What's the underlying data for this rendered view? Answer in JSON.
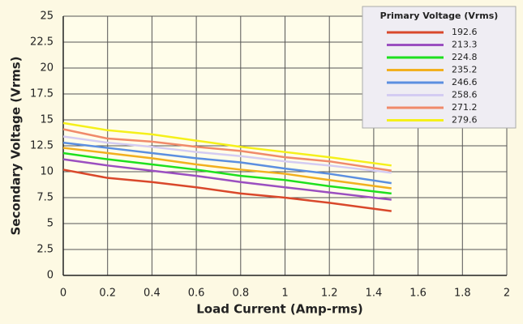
{
  "chart_data": {
    "type": "line",
    "xlabel": "Load Current (Amp-rms)",
    "ylabel": "Secondary Voltage (Vrms)",
    "legend_title": "Primary Voltage (Vrms)",
    "legend": "upper right",
    "grid": true,
    "x": [
      0,
      0.2,
      0.4,
      0.6,
      0.8,
      1.0,
      1.2,
      1.48
    ],
    "xlim": [
      0,
      2
    ],
    "xticks": [
      0,
      0.2,
      0.4,
      0.6,
      0.8,
      1,
      1.2,
      1.4,
      1.6,
      1.8,
      2
    ],
    "ylim": [
      0,
      25
    ],
    "yticks": [
      0,
      2.5,
      5,
      7.5,
      10,
      12.5,
      15,
      17.5,
      20,
      22.5,
      25
    ],
    "series": [
      {
        "name": "192.6",
        "color": "#d9482b",
        "values": [
          10.2,
          9.4,
          9.0,
          8.5,
          7.9,
          7.5,
          7.0,
          6.2
        ]
      },
      {
        "name": "213.3",
        "color": "#9b4fc0",
        "values": [
          11.2,
          10.6,
          10.1,
          9.6,
          9.0,
          8.5,
          8.0,
          7.3
        ]
      },
      {
        "name": "224.8",
        "color": "#1ee01e",
        "values": [
          11.8,
          11.2,
          10.7,
          10.2,
          9.6,
          9.2,
          8.6,
          7.9
        ]
      },
      {
        "name": "235.2",
        "color": "#f2b01e",
        "values": [
          12.3,
          11.8,
          11.3,
          10.7,
          10.2,
          9.8,
          9.2,
          8.4
        ]
      },
      {
        "name": "246.6",
        "color": "#5b8fe0",
        "values": [
          12.8,
          12.3,
          11.8,
          11.3,
          10.9,
          10.3,
          9.8,
          8.9
        ]
      },
      {
        "name": "258.6",
        "color": "#d4ccf2",
        "values": [
          13.4,
          12.8,
          12.4,
          11.9,
          11.5,
          11.0,
          10.6,
          9.9
        ]
      },
      {
        "name": "271.2",
        "color": "#f08a6a",
        "values": [
          14.1,
          13.2,
          12.9,
          12.4,
          12.0,
          11.4,
          11.0,
          10.1
        ]
      },
      {
        "name": "279.6",
        "color": "#f5f01a",
        "values": [
          14.7,
          14.0,
          13.6,
          13.0,
          12.4,
          11.9,
          11.4,
          10.6
        ]
      }
    ]
  }
}
